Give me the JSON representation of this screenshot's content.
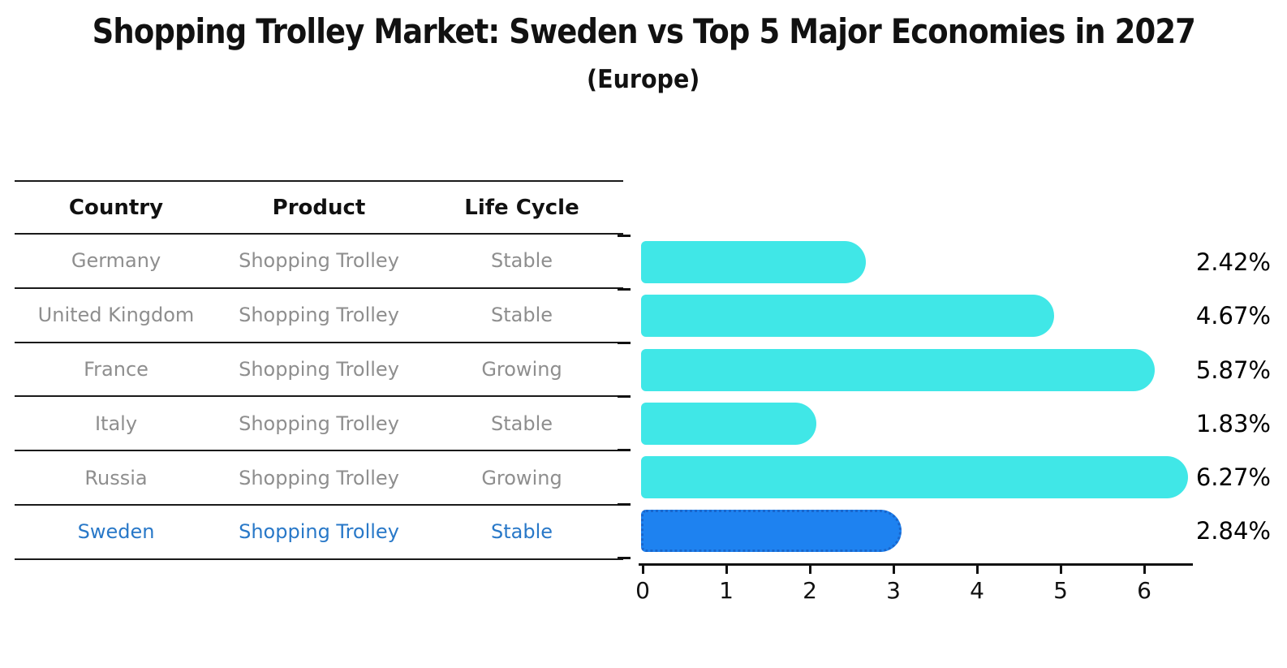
{
  "title": "Shopping Trolley Market: Sweden vs Top 5 Major Economies in 2027",
  "subtitle": "(Europe)",
  "table": {
    "headers": [
      "Country",
      "Product",
      "Life Cycle"
    ],
    "rows": [
      {
        "country": "Germany",
        "product": "Shopping Trolley",
        "life_cycle": "Stable",
        "highlighted": false
      },
      {
        "country": "United Kingdom",
        "product": "Shopping Trolley",
        "life_cycle": "Stable",
        "highlighted": false
      },
      {
        "country": "France",
        "product": "Shopping Trolley",
        "life_cycle": "Growing",
        "highlighted": false
      },
      {
        "country": "Italy",
        "product": "Shopping Trolley",
        "life_cycle": "Stable",
        "highlighted": false
      },
      {
        "country": "Russia",
        "product": "Shopping Trolley",
        "life_cycle": "Growing",
        "highlighted": false
      },
      {
        "country": "Sweden",
        "product": "Shopping Trolley",
        "life_cycle": "Stable",
        "highlighted": true
      }
    ]
  },
  "chart_data": {
    "type": "bar",
    "orientation": "horizontal",
    "title": "Shopping Trolley Market: Sweden vs Top 5 Major Economies in 2027",
    "subtitle": "(Europe)",
    "categories": [
      "Germany",
      "United Kingdom",
      "France",
      "Italy",
      "Russia",
      "Sweden"
    ],
    "values": [
      2.42,
      4.67,
      5.87,
      1.83,
      6.27,
      2.84
    ],
    "value_labels": [
      "2.42%",
      "4.67%",
      "5.87%",
      "1.83%",
      "6.27%",
      "2.84%"
    ],
    "x_ticks": [
      "0",
      "1",
      "2",
      "3",
      "4",
      "5",
      "6"
    ],
    "xlim": [
      0,
      6.6
    ],
    "grid": false,
    "legend": null,
    "bar_color": "#40E7E7",
    "highlight_index": 5,
    "highlight_color": "#1E82F0",
    "highlight_border_color": "#1966CC"
  },
  "colors": {
    "background": "#FFFFFF",
    "table_line": "#1A1A1A",
    "row_text": "#8E8E8E",
    "highlight_row_text": "#2878C8",
    "header_text": "#111111",
    "axis_text": "#111111",
    "value_label_text": "#000000"
  }
}
